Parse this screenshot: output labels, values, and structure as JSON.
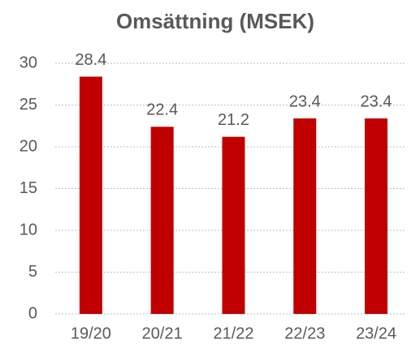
{
  "chart_data": {
    "type": "bar",
    "title": "Omsättning (MSEK)",
    "categories": [
      "19/20",
      "20/21",
      "21/22",
      "22/23",
      "23/24"
    ],
    "values": [
      28.4,
      22.4,
      21.2,
      23.4,
      23.4
    ],
    "color": "#c00000",
    "ylim": [
      0,
      30
    ],
    "yticks": [
      0,
      5,
      10,
      15,
      20,
      25,
      30
    ],
    "grid": true
  }
}
